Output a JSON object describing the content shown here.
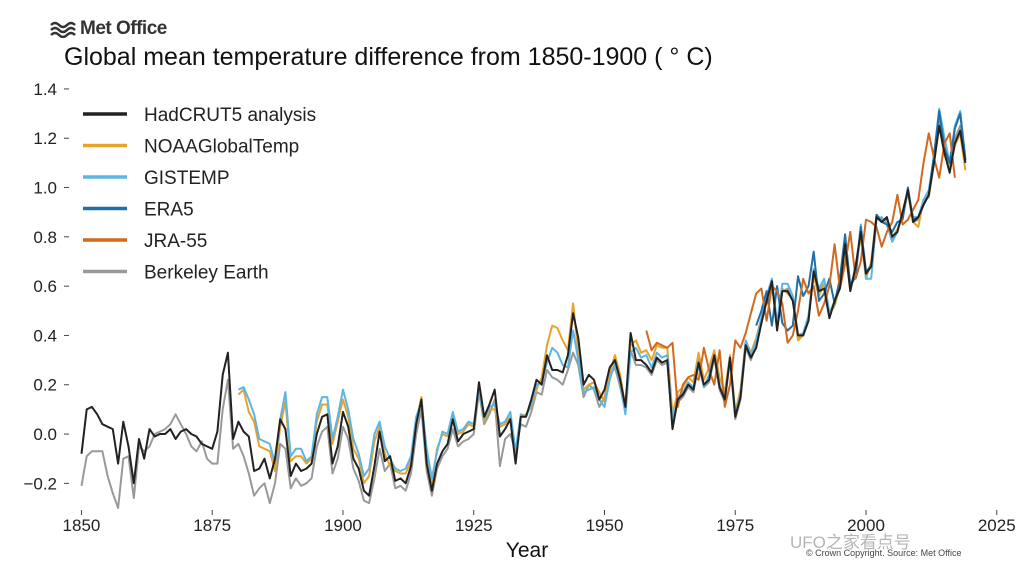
{
  "brand": {
    "name": "Met Office",
    "logo_icon": "met-office-wave-logo-icon"
  },
  "footer": {
    "copyright": "© Crown Copyright. Source: Met Office"
  },
  "watermark": {
    "text": "UFO之家看点号"
  },
  "chart_data": {
    "type": "line",
    "title": "Global mean temperature difference from 1850-1900 ( ° C)",
    "xlabel": "Year",
    "ylabel": "",
    "xlim": [
      1848,
      2026
    ],
    "ylim": [
      -0.3,
      1.42
    ],
    "xticks": [
      1850,
      1875,
      1900,
      1925,
      1950,
      1975,
      2000,
      2025
    ],
    "yticks": [
      -0.2,
      0.0,
      0.2,
      0.4,
      0.6,
      0.8,
      1.0,
      1.2,
      1.4
    ],
    "ytick_labels": [
      "−0.2",
      "0.0",
      "0.2",
      "0.4",
      "0.6",
      "0.8",
      "1.0",
      "1.2",
      "1.4"
    ],
    "grid": false,
    "legend_position": "top-left",
    "series": [
      {
        "name": "HadCRUT5 analysis",
        "color": "#222222",
        "start": 1850,
        "values": [
          -0.08,
          0.1,
          0.11,
          0.08,
          0.04,
          0.03,
          0.02,
          -0.12,
          0.05,
          -0.05,
          -0.2,
          -0.02,
          -0.1,
          0.02,
          -0.01,
          0.0,
          0.0,
          0.02,
          -0.02,
          0.01,
          0.02,
          0.0,
          -0.01,
          -0.04,
          -0.05,
          -0.06,
          0.01,
          0.24,
          0.33,
          -0.02,
          0.05,
          0.01,
          -0.01,
          -0.15,
          -0.14,
          -0.1,
          -0.18,
          -0.1,
          0.06,
          0.02,
          -0.17,
          -0.12,
          -0.15,
          -0.14,
          -0.12,
          0.0,
          0.07,
          0.08,
          -0.12,
          -0.05,
          0.09,
          0.03,
          -0.1,
          -0.14,
          -0.23,
          -0.25,
          -0.13,
          0.01,
          -0.11,
          -0.09,
          -0.19,
          -0.18,
          -0.2,
          -0.13,
          0.04,
          0.14,
          -0.12,
          -0.23,
          -0.12,
          -0.07,
          -0.04,
          0.06,
          -0.03,
          0.0,
          0.01,
          0.02,
          0.21,
          0.07,
          0.12,
          0.18,
          -0.01,
          0.02,
          0.06,
          -0.12,
          0.07,
          0.07,
          0.14,
          0.22,
          0.2,
          0.32,
          0.26,
          0.26,
          0.25,
          0.32,
          0.49,
          0.39,
          0.2,
          0.24,
          0.22,
          0.14,
          0.18,
          0.27,
          0.3,
          0.22,
          0.11,
          0.41,
          0.3,
          0.3,
          0.28,
          0.25,
          0.31,
          0.29,
          0.3,
          0.02,
          0.14,
          0.16,
          0.2,
          0.18,
          0.29,
          0.2,
          0.22,
          0.32,
          0.19,
          0.14,
          0.31,
          0.07,
          0.15,
          0.36,
          0.31,
          0.35,
          0.45,
          0.54,
          0.62,
          0.42,
          0.58,
          0.58,
          0.54,
          0.4,
          0.4,
          0.46,
          0.66,
          0.58,
          0.59,
          0.47,
          0.54,
          0.59,
          0.77,
          0.58,
          0.68,
          0.82,
          0.65,
          0.68,
          0.88,
          0.86,
          0.88,
          0.8,
          0.82,
          0.9,
          0.99,
          0.86,
          0.88,
          0.93,
          0.97,
          1.1,
          1.25,
          1.14,
          1.06,
          1.18,
          1.23,
          1.1
        ]
      },
      {
        "name": "NOAAGlobalTemp",
        "color": "#E8A32A",
        "start": 1880,
        "values": [
          0.16,
          0.18,
          0.09,
          0.05,
          -0.05,
          -0.06,
          -0.07,
          -0.15,
          0.03,
          0.13,
          -0.11,
          -0.09,
          -0.09,
          -0.12,
          -0.1,
          0.05,
          0.12,
          0.12,
          -0.04,
          0.05,
          0.14,
          0.07,
          -0.06,
          -0.1,
          -0.2,
          -0.17,
          -0.03,
          0.03,
          -0.08,
          -0.13,
          -0.15,
          -0.16,
          -0.16,
          -0.11,
          0.05,
          0.15,
          -0.08,
          -0.2,
          -0.06,
          0.0,
          -0.01,
          0.07,
          0.0,
          0.01,
          0.04,
          0.03,
          0.19,
          0.05,
          0.1,
          0.1,
          0.03,
          0.04,
          0.07,
          -0.1,
          0.07,
          0.08,
          0.11,
          0.18,
          0.23,
          0.36,
          0.44,
          0.43,
          0.38,
          0.34,
          0.53,
          0.33,
          0.18,
          0.2,
          0.21,
          0.17,
          0.13,
          0.25,
          0.32,
          0.24,
          0.11,
          0.36,
          0.38,
          0.33,
          0.34,
          0.3,
          0.36,
          0.35,
          0.35,
          0.08,
          0.17,
          0.19,
          0.23,
          0.21,
          0.33,
          0.22,
          0.27,
          0.34,
          0.23,
          0.17,
          0.32,
          0.09,
          0.18,
          0.38,
          0.33,
          0.39,
          0.47,
          0.53,
          0.6,
          0.45,
          0.59,
          0.57,
          0.55,
          0.38,
          0.4,
          0.48,
          0.64,
          0.56,
          0.61,
          0.49,
          0.52,
          0.6,
          0.75,
          0.58,
          0.68,
          0.8,
          0.63,
          0.7,
          0.89,
          0.87,
          0.86,
          0.8,
          0.83,
          0.88,
          0.98,
          0.86,
          0.84,
          0.95,
          0.96,
          1.1,
          1.25,
          1.13,
          1.08,
          1.17,
          1.22,
          1.07
        ]
      },
      {
        "name": "GISTEMP",
        "color": "#5BB5E5",
        "start": 1880,
        "values": [
          0.18,
          0.19,
          0.14,
          0.08,
          -0.02,
          -0.03,
          -0.04,
          -0.12,
          0.06,
          0.17,
          -0.09,
          -0.06,
          -0.06,
          -0.11,
          -0.09,
          0.08,
          0.15,
          0.15,
          -0.02,
          0.07,
          0.18,
          0.1,
          -0.02,
          -0.08,
          -0.17,
          -0.14,
          0.0,
          0.05,
          -0.05,
          -0.1,
          -0.14,
          -0.15,
          -0.14,
          -0.09,
          0.07,
          0.13,
          -0.06,
          -0.18,
          -0.07,
          0.01,
          0.0,
          0.09,
          0.01,
          0.02,
          0.05,
          0.04,
          0.18,
          0.06,
          0.11,
          0.12,
          0.04,
          0.05,
          0.09,
          -0.07,
          0.08,
          0.07,
          0.12,
          0.2,
          0.21,
          0.29,
          0.35,
          0.33,
          0.28,
          0.27,
          0.42,
          0.3,
          0.17,
          0.18,
          0.19,
          0.14,
          0.11,
          0.22,
          0.29,
          0.21,
          0.08,
          0.33,
          0.35,
          0.31,
          0.32,
          0.27,
          0.33,
          0.31,
          0.32,
          0.05,
          0.15,
          0.17,
          0.21,
          0.19,
          0.3,
          0.19,
          0.24,
          0.32,
          0.2,
          0.14,
          0.31,
          0.08,
          0.16,
          0.38,
          0.32,
          0.38,
          0.47,
          0.56,
          0.63,
          0.45,
          0.61,
          0.61,
          0.56,
          0.4,
          0.41,
          0.48,
          0.67,
          0.59,
          0.63,
          0.49,
          0.54,
          0.61,
          0.78,
          0.61,
          0.64,
          0.85,
          0.63,
          0.63,
          0.87,
          0.88,
          0.85,
          0.78,
          0.82,
          0.9,
          0.98,
          0.88,
          0.88,
          0.95,
          0.99,
          1.13,
          1.32,
          1.2,
          1.1,
          1.25,
          1.31,
          1.12
        ]
      },
      {
        "name": "ERA5",
        "color": "#1F6FA8",
        "start": 1979,
        "values": [
          0.44,
          0.5,
          0.58,
          0.44,
          0.6,
          0.45,
          0.42,
          0.44,
          0.64,
          0.56,
          0.6,
          0.74,
          0.54,
          0.57,
          0.63,
          0.53,
          0.63,
          0.81,
          0.6,
          0.64,
          0.84,
          0.66,
          0.68,
          0.89,
          0.86,
          0.85,
          0.82,
          0.86,
          0.87,
          1.0,
          0.87,
          0.88,
          0.93,
          0.97,
          1.13,
          1.31,
          1.16,
          1.1,
          1.24,
          1.3,
          1.11
        ]
      },
      {
        "name": "JRA-55",
        "color": "#D2691E",
        "start": 1958,
        "values": [
          0.42,
          0.34,
          0.37,
          0.36,
          0.35,
          0.37,
          0.11,
          0.2,
          0.23,
          0.24,
          0.22,
          0.35,
          0.26,
          0.2,
          0.34,
          0.11,
          0.2,
          0.38,
          0.35,
          0.41,
          0.49,
          0.57,
          0.59,
          0.46,
          0.6,
          0.58,
          0.53,
          0.37,
          0.4,
          0.5,
          0.63,
          0.57,
          0.6,
          0.48,
          0.53,
          0.6,
          0.77,
          0.59,
          0.69,
          0.82,
          0.63,
          0.7,
          0.87,
          0.86,
          0.84,
          0.76,
          0.82,
          0.86,
          0.97,
          0.85,
          0.87,
          0.91,
          0.95,
          1.1,
          1.22,
          1.12,
          1.04,
          1.18,
          1.22,
          1.04
        ]
      },
      {
        "name": "Berkeley Earth",
        "color": "#999999",
        "start": 1850,
        "values": [
          -0.21,
          -0.09,
          -0.07,
          -0.07,
          -0.07,
          -0.17,
          -0.24,
          -0.3,
          -0.1,
          -0.09,
          -0.26,
          -0.05,
          -0.07,
          -0.05,
          0.0,
          0.01,
          0.02,
          0.04,
          0.08,
          0.04,
          0.0,
          -0.05,
          -0.07,
          -0.03,
          -0.1,
          -0.12,
          -0.12,
          0.1,
          0.22,
          -0.06,
          -0.04,
          -0.09,
          -0.16,
          -0.25,
          -0.22,
          -0.2,
          -0.28,
          -0.2,
          -0.04,
          -0.06,
          -0.22,
          -0.18,
          -0.21,
          -0.2,
          -0.18,
          -0.05,
          0.01,
          0.03,
          -0.16,
          -0.1,
          0.03,
          -0.02,
          -0.14,
          -0.19,
          -0.27,
          -0.28,
          -0.18,
          -0.06,
          -0.15,
          -0.12,
          -0.22,
          -0.21,
          -0.23,
          -0.16,
          0.0,
          0.1,
          -0.15,
          -0.25,
          -0.14,
          -0.09,
          -0.06,
          0.02,
          -0.05,
          -0.03,
          -0.02,
          0.0,
          0.17,
          0.04,
          0.08,
          0.14,
          -0.13,
          -0.02,
          0.0,
          -0.07,
          0.04,
          0.03,
          0.09,
          0.17,
          0.16,
          0.26,
          0.23,
          0.22,
          0.2,
          0.26,
          0.33,
          0.28,
          0.15,
          0.2,
          0.18,
          0.11,
          0.15,
          0.24,
          0.27,
          0.19,
          0.09,
          0.34,
          0.28,
          0.28,
          0.27,
          0.24,
          0.3,
          0.28,
          0.29,
          0.03,
          0.13,
          0.15,
          0.19,
          0.17,
          0.28,
          0.19,
          0.21,
          0.31,
          0.18,
          0.13,
          0.3,
          0.06,
          0.14,
          0.35,
          0.3,
          0.36,
          0.45,
          0.55,
          0.61,
          0.43,
          0.58,
          0.59,
          0.54,
          0.39,
          0.4,
          0.46,
          0.66,
          0.58,
          0.61,
          0.48,
          0.53,
          0.6,
          0.77,
          0.59,
          0.67,
          0.83,
          0.65,
          0.68,
          0.88,
          0.86,
          0.87,
          0.79,
          0.83,
          0.89,
          0.99,
          0.86,
          0.87,
          0.93,
          0.97,
          1.11,
          1.27,
          1.16,
          1.07,
          1.2,
          1.25,
          1.11
        ]
      }
    ]
  }
}
